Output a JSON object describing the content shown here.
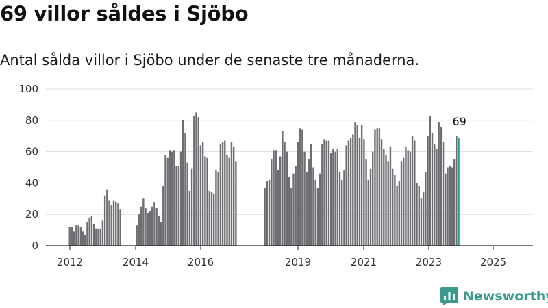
{
  "title": "69 villor såldes i Sjöbo",
  "subtitle": "Antal sålda villor i Sjöbo under de senaste tre månaderna.",
  "brand": "Newsworthy",
  "colors": {
    "bar": "#6e6d72",
    "highlight": "#2a9d8f",
    "grid": "#dddddd",
    "brand": "#3a9a8c"
  },
  "chart_data": {
    "type": "bar",
    "title": "",
    "xlabel": "",
    "ylabel": "",
    "ylim": [
      0,
      100
    ],
    "y_ticks": [
      0,
      20,
      40,
      60,
      80,
      100
    ],
    "x_tick_labels": [
      "2012",
      "2014",
      "2016",
      "2019",
      "2021",
      "2023",
      "2025"
    ],
    "grid": true,
    "highlight_label": "69",
    "series": [
      {
        "segment": 1,
        "values": [
          12,
          12,
          9,
          13,
          13,
          12,
          9,
          7,
          15,
          18,
          19,
          14,
          11,
          11,
          11,
          16,
          32,
          36,
          29,
          26,
          29,
          28,
          27,
          23
        ]
      },
      {
        "segment": 2,
        "values": [
          13,
          20,
          25,
          30,
          24,
          21,
          22,
          25,
          28,
          24,
          19,
          15,
          38,
          58,
          56,
          61,
          60,
          61,
          51,
          51,
          60,
          80,
          72,
          53,
          35,
          49,
          83,
          85,
          82,
          64,
          66,
          57,
          56,
          35,
          34,
          33,
          48,
          47,
          65,
          66,
          67,
          58,
          56,
          66,
          63,
          54
        ]
      },
      {
        "segment": 3,
        "values": [
          37,
          41,
          42,
          55,
          61,
          61,
          48,
          57,
          73,
          66,
          60,
          44,
          37,
          46,
          51,
          66,
          75,
          74,
          60,
          47,
          55,
          65,
          50,
          42,
          37,
          46,
          65,
          68,
          67,
          67,
          59,
          62,
          60,
          62,
          47,
          42,
          48,
          64,
          67,
          69,
          71,
          79,
          77,
          69,
          77,
          68,
          55,
          42,
          49,
          60,
          74,
          75,
          75,
          68,
          62,
          58,
          54,
          63,
          49,
          45,
          38,
          41,
          54,
          56,
          63,
          61,
          60,
          70,
          67,
          40,
          38,
          30,
          34,
          47,
          70,
          83,
          72,
          65,
          62,
          79,
          76,
          66,
          46,
          50,
          51,
          50,
          55,
          70,
          69
        ]
      }
    ]
  }
}
